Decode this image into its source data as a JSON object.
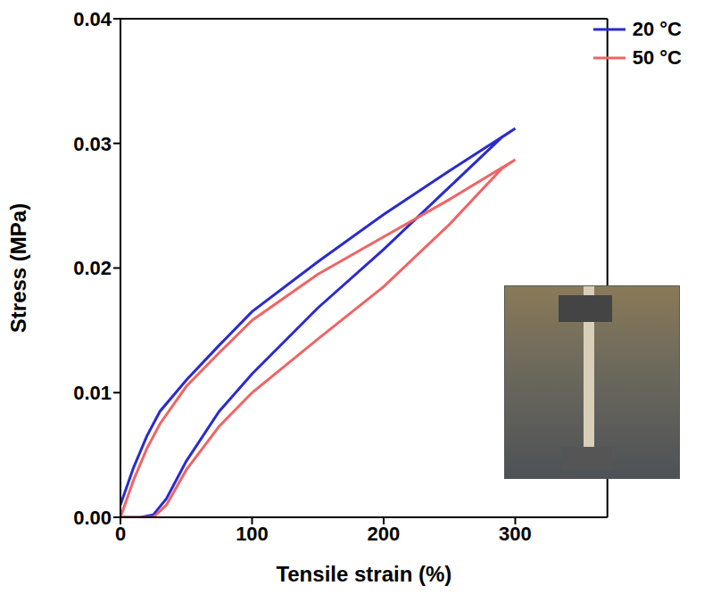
{
  "chart_data": {
    "type": "line",
    "x_label": "Tensile strain (%)",
    "y_label": "Stress (MPa)",
    "xlim": [
      0,
      370
    ],
    "xticks": [
      0,
      100,
      200,
      300
    ],
    "ylim": [
      0,
      0.04
    ],
    "yticks": [
      {
        "value": 0,
        "label": "0.00"
      },
      {
        "value": 0.01,
        "label": "0.01"
      },
      {
        "value": 0.02,
        "label": "0.02"
      },
      {
        "value": 0.03,
        "label": "0.03"
      },
      {
        "value": 0.04,
        "label": "0.04"
      }
    ],
    "legend": "upper right",
    "grid": false,
    "series": [
      {
        "name": "20 °C",
        "color": "#2a2ad0",
        "x": [
          0,
          10,
          20,
          30,
          50,
          75,
          100,
          150,
          200,
          250,
          300,
          290,
          250,
          200,
          150,
          100,
          75,
          50,
          35,
          25,
          15,
          5,
          0
        ],
        "values": [
          0.001,
          0.004,
          0.0065,
          0.0085,
          0.011,
          0.0138,
          0.0165,
          0.0205,
          0.0243,
          0.0278,
          0.0312,
          0.0305,
          0.0265,
          0.0215,
          0.0168,
          0.0115,
          0.0085,
          0.0045,
          0.0015,
          0.0002,
          0,
          0,
          0
        ]
      },
      {
        "name": "50 °C",
        "color": "#f06464",
        "x": [
          0,
          10,
          20,
          30,
          50,
          75,
          100,
          150,
          200,
          250,
          300,
          290,
          250,
          200,
          150,
          100,
          75,
          50,
          35,
          25,
          10,
          0
        ],
        "values": [
          0,
          0.003,
          0.0055,
          0.0075,
          0.0105,
          0.0132,
          0.0158,
          0.0195,
          0.0225,
          0.0255,
          0.0287,
          0.028,
          0.0235,
          0.0185,
          0.0143,
          0.01,
          0.0073,
          0.0038,
          0.001,
          0,
          0,
          0
        ]
      }
    ]
  }
}
